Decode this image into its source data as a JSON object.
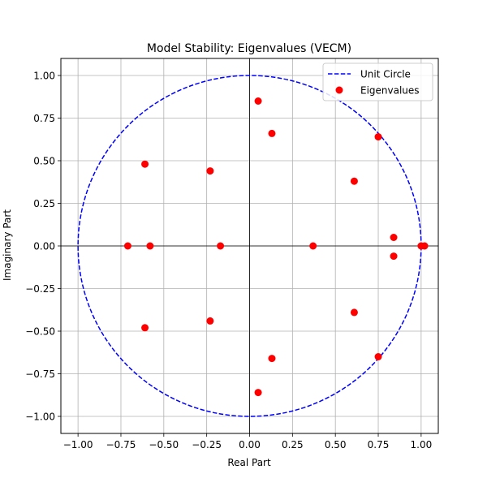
{
  "chart_data": {
    "type": "scatter",
    "title": "Model Stability: Eigenvalues (VECM)",
    "xlabel": "Real Part",
    "ylabel": "Imaginary Part",
    "xlim": [
      -1.1,
      1.1
    ],
    "ylim": [
      -1.1,
      1.1
    ],
    "xticks": [
      -1.0,
      -0.75,
      -0.5,
      -0.25,
      0.0,
      0.25,
      0.5,
      0.75,
      1.0
    ],
    "yticks": [
      -1.0,
      -0.75,
      -0.5,
      -0.25,
      0.0,
      0.25,
      0.5,
      0.75,
      1.0
    ],
    "xtick_labels": [
      "−1.00",
      "−0.75",
      "−0.50",
      "−0.25",
      "0.00",
      "0.25",
      "0.50",
      "0.75",
      "1.00"
    ],
    "ytick_labels": [
      "−1.00",
      "−0.75",
      "−0.50",
      "−0.25",
      "0.00",
      "0.25",
      "0.50",
      "0.75",
      "1.00"
    ],
    "grid": true,
    "legend_position": "top-right",
    "series": [
      {
        "name": "Unit Circle",
        "kind": "line",
        "style": "dashed",
        "color": "#0000ff",
        "radius": 1.0
      },
      {
        "name": "Eigenvalues",
        "kind": "scatter",
        "color": "#ff0000",
        "points": [
          {
            "x": 0.05,
            "y": 0.85
          },
          {
            "x": 0.05,
            "y": -0.86
          },
          {
            "x": 0.13,
            "y": 0.66
          },
          {
            "x": 0.13,
            "y": -0.66
          },
          {
            "x": 0.75,
            "y": 0.64
          },
          {
            "x": 0.75,
            "y": -0.65
          },
          {
            "x": 0.61,
            "y": 0.38
          },
          {
            "x": 0.61,
            "y": -0.39
          },
          {
            "x": 0.84,
            "y": 0.05
          },
          {
            "x": 0.84,
            "y": -0.06
          },
          {
            "x": 1.0,
            "y": 0.0
          },
          {
            "x": 1.02,
            "y": 0.0
          },
          {
            "x": 0.37,
            "y": 0.0
          },
          {
            "x": -0.17,
            "y": 0.0
          },
          {
            "x": -0.58,
            "y": 0.0
          },
          {
            "x": -0.71,
            "y": 0.0
          },
          {
            "x": -0.61,
            "y": 0.48
          },
          {
            "x": -0.61,
            "y": -0.48
          },
          {
            "x": -0.23,
            "y": 0.44
          },
          {
            "x": -0.23,
            "y": -0.44
          }
        ]
      }
    ]
  }
}
